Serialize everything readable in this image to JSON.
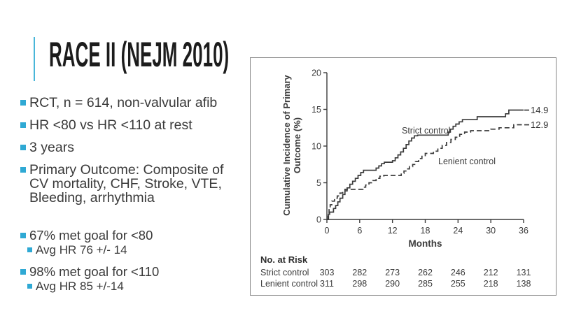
{
  "slide": {
    "title": "RACE II (NEJM 2010)",
    "accent_color": "#2fa9d4",
    "text_color": "#3a3a3a",
    "bullets_main": [
      "RCT, n = 614, non-valvular afib",
      "HR <80 vs HR <110 at rest",
      "3 years",
      "Primary Outcome: Composite of\nCV mortality, CHF, Stroke, VTE,\nBleeding, arrhythmia"
    ],
    "bullets_results": [
      {
        "text": "67% met goal for <80",
        "level": 1
      },
      {
        "text": "Avg HR 76 +/- 14",
        "level": 2
      },
      {
        "text": "98% met goal for <110",
        "level": 1
      },
      {
        "text": "Avg HR 85 +/-14",
        "level": 2
      }
    ]
  },
  "chart_data": {
    "type": "line",
    "subtype": "step-cumulative-incidence",
    "title": "",
    "ylabel": "Cumulative Incidence of Primary\nOutcome (%)",
    "xlabel": "Months",
    "xlim": [
      0,
      36
    ],
    "ylim": [
      0,
      20
    ],
    "xticks": [
      0,
      6,
      12,
      18,
      24,
      30,
      36
    ],
    "yticks": [
      0,
      5,
      10,
      15,
      20
    ],
    "grid": false,
    "legend_position": "inline-labels",
    "line_color": "#3b3b3b",
    "series": [
      {
        "name": "Strict control",
        "line_style": "solid",
        "end_label": "14.9",
        "final_value": 14.9,
        "points": [
          [
            0.3,
            0.7
          ],
          [
            0.5,
            1.0
          ],
          [
            1.2,
            1.5
          ],
          [
            1.6,
            1.9
          ],
          [
            2.0,
            2.4
          ],
          [
            2.4,
            2.9
          ],
          [
            2.9,
            3.4
          ],
          [
            3.3,
            3.9
          ],
          [
            3.7,
            4.3
          ],
          [
            4.2,
            4.8
          ],
          [
            4.7,
            5.2
          ],
          [
            5.2,
            5.6
          ],
          [
            5.7,
            6.0
          ],
          [
            6.2,
            6.4
          ],
          [
            6.7,
            6.7
          ],
          [
            9.0,
            7.0
          ],
          [
            9.5,
            7.3
          ],
          [
            10.0,
            7.6
          ],
          [
            10.5,
            7.8
          ],
          [
            12.0,
            8.0
          ],
          [
            12.5,
            8.4
          ],
          [
            13.0,
            8.8
          ],
          [
            13.5,
            9.2
          ],
          [
            14.0,
            9.7
          ],
          [
            14.5,
            10.2
          ],
          [
            15.0,
            10.7
          ],
          [
            15.5,
            11.1
          ],
          [
            16.0,
            11.4
          ],
          [
            16.6,
            11.5
          ],
          [
            22.2,
            11.9
          ],
          [
            22.6,
            12.3
          ],
          [
            23.1,
            12.7
          ],
          [
            23.6,
            13.0
          ],
          [
            24.2,
            13.3
          ],
          [
            24.8,
            13.6
          ],
          [
            27.5,
            14.0
          ],
          [
            32.7,
            14.4
          ],
          [
            33.3,
            14.9
          ]
        ]
      },
      {
        "name": "Lenient control",
        "line_style": "dashed",
        "end_label": "12.9",
        "final_value": 12.9,
        "points": [
          [
            0.2,
            0.8
          ],
          [
            0.4,
            1.5
          ],
          [
            0.6,
            2.0
          ],
          [
            0.9,
            2.5
          ],
          [
            1.4,
            2.9
          ],
          [
            1.9,
            3.2
          ],
          [
            2.4,
            3.6
          ],
          [
            2.9,
            3.9
          ],
          [
            3.3,
            4.1
          ],
          [
            6.6,
            4.4
          ],
          [
            7.1,
            4.7
          ],
          [
            7.7,
            5.0
          ],
          [
            8.4,
            5.3
          ],
          [
            9.0,
            5.6
          ],
          [
            9.7,
            5.9
          ],
          [
            10.4,
            6.0
          ],
          [
            13.6,
            6.3
          ],
          [
            14.1,
            6.6
          ],
          [
            14.6,
            6.9
          ],
          [
            15.1,
            7.2
          ],
          [
            15.7,
            7.5
          ],
          [
            16.2,
            7.9
          ],
          [
            16.8,
            8.3
          ],
          [
            17.4,
            8.7
          ],
          [
            18.0,
            9.0
          ],
          [
            19.5,
            9.3
          ],
          [
            20.3,
            9.7
          ],
          [
            21.1,
            10.1
          ],
          [
            21.9,
            10.5
          ],
          [
            22.7,
            10.9
          ],
          [
            23.5,
            11.2
          ],
          [
            24.3,
            11.6
          ],
          [
            25.2,
            11.9
          ],
          [
            26.3,
            12.1
          ],
          [
            30.0,
            12.3
          ],
          [
            31.5,
            12.5
          ],
          [
            34.2,
            12.9
          ]
        ]
      }
    ],
    "at_risk": {
      "title": "No. at Risk",
      "rows": [
        {
          "label": "Strict control",
          "values": [
            303,
            282,
            273,
            262,
            246,
            212,
            131
          ]
        },
        {
          "label": "Lenient control",
          "values": [
            311,
            298,
            290,
            285,
            255,
            218,
            138
          ]
        }
      ]
    }
  }
}
